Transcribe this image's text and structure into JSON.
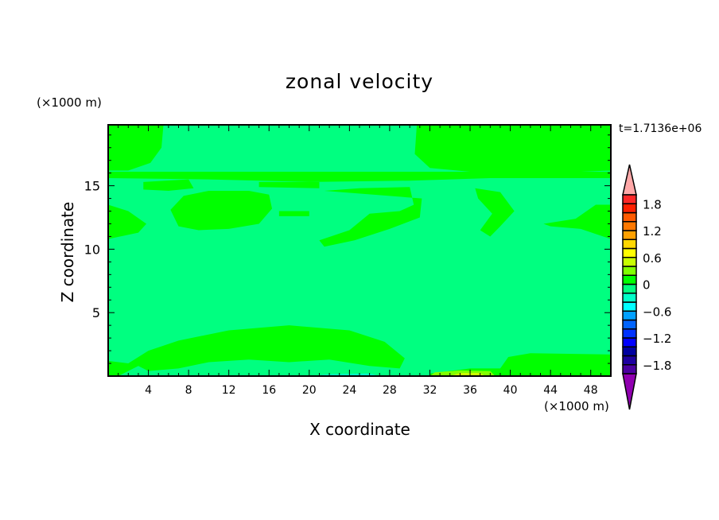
{
  "chart_data": {
    "type": "heatmap",
    "subtype": "filled-contour",
    "title": "zonal velocity",
    "xlabel": "X coordinate",
    "ylabel": "Z coordinate",
    "x_unit": "(×1000 m)",
    "y_unit": "(×1000 m)",
    "time_label": "t=1.7136e+06",
    "xlim": [
      0,
      50
    ],
    "ylim": [
      0,
      19.8
    ],
    "x_ticks": [
      "4",
      "8",
      "12",
      "16",
      "20",
      "24",
      "28",
      "32",
      "36",
      "40",
      "44",
      "48"
    ],
    "x_tick_values": [
      4,
      8,
      12,
      16,
      20,
      24,
      28,
      32,
      36,
      40,
      44,
      48
    ],
    "y_ticks": [
      "5",
      "10",
      "15"
    ],
    "y_tick_values": [
      5,
      10,
      15
    ],
    "grid": false,
    "colorbar": {
      "position": "right",
      "levels": [
        -2.0,
        -1.8,
        -1.6,
        -1.4,
        -1.2,
        -1.0,
        -0.8,
        -0.6,
        -0.4,
        -0.2,
        0,
        0.2,
        0.4,
        0.6,
        0.8,
        1.0,
        1.2,
        1.4,
        1.6,
        1.8,
        2.0
      ],
      "labels": [
        "1.8",
        "1.2",
        "0.6",
        "0",
        "−0.6",
        "−1.2",
        "−1.8"
      ],
      "label_values": [
        1.8,
        1.2,
        0.6,
        0,
        -0.6,
        -1.2,
        -1.8
      ],
      "colors": [
        "#4b00a0",
        "#1e00a0",
        "#0000a0",
        "#0000ff",
        "#0032ff",
        "#0064ff",
        "#00a0ff",
        "#00ffff",
        "#00ffc8",
        "#00ff80",
        "#00ff00",
        "#80ff00",
        "#c8ff00",
        "#ffff00",
        "#ffd700",
        "#ffa000",
        "#ff7800",
        "#ff5a00",
        "#ff2000",
        "#ff2828"
      ],
      "over_color": "#ffa8a8",
      "under_color": "#9000b0"
    },
    "field_summary": {
      "background_level": [
        -0.2,
        0
      ],
      "positive_regions_level": [
        0,
        0.2
      ],
      "max_region_level": [
        0.4,
        0.6
      ]
    }
  }
}
